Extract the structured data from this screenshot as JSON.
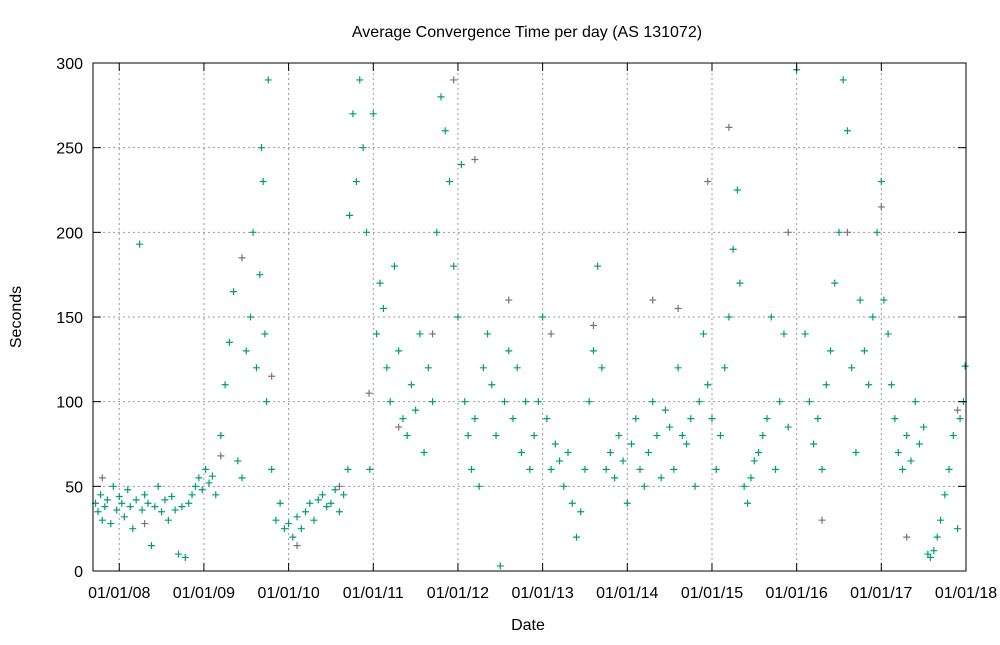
{
  "chart_data": {
    "type": "scatter",
    "title": "Average Convergence Time per day (AS 131072)",
    "xlabel": "Date",
    "ylabel": "Seconds",
    "xlim": [
      2007.69,
      2018.0
    ],
    "ylim": [
      0,
      300
    ],
    "grid": true,
    "xticks": [
      {
        "v": 2008,
        "label": "01/01/08"
      },
      {
        "v": 2009,
        "label": "01/01/09"
      },
      {
        "v": 2010,
        "label": "01/01/10"
      },
      {
        "v": 2011,
        "label": "01/01/11"
      },
      {
        "v": 2012,
        "label": "01/01/12"
      },
      {
        "v": 2013,
        "label": "01/01/13"
      },
      {
        "v": 2014,
        "label": "01/01/14"
      },
      {
        "v": 2015,
        "label": "01/01/15"
      },
      {
        "v": 2016,
        "label": "01/01/16"
      },
      {
        "v": 2017,
        "label": "01/01/17"
      },
      {
        "v": 2018,
        "label": "01/01/18"
      }
    ],
    "yticks": [
      0,
      50,
      100,
      150,
      200,
      250,
      300
    ],
    "series": [
      {
        "name": "primary",
        "color": "#009e73",
        "points": [
          [
            2007.72,
            40
          ],
          [
            2007.75,
            35
          ],
          [
            2007.78,
            45
          ],
          [
            2007.8,
            30
          ],
          [
            2007.83,
            38
          ],
          [
            2007.86,
            42
          ],
          [
            2007.9,
            28
          ],
          [
            2007.93,
            50
          ],
          [
            2007.97,
            36
          ],
          [
            2008.0,
            44
          ],
          [
            2008.03,
            40
          ],
          [
            2008.06,
            32
          ],
          [
            2008.1,
            48
          ],
          [
            2008.13,
            38
          ],
          [
            2008.16,
            25
          ],
          [
            2008.2,
            42
          ],
          [
            2008.24,
            193
          ],
          [
            2008.27,
            36
          ],
          [
            2008.3,
            45
          ],
          [
            2008.34,
            40
          ],
          [
            2008.38,
            15
          ],
          [
            2008.42,
            38
          ],
          [
            2008.46,
            50
          ],
          [
            2008.5,
            35
          ],
          [
            2008.54,
            42
          ],
          [
            2008.58,
            30
          ],
          [
            2008.62,
            44
          ],
          [
            2008.66,
            36
          ],
          [
            2008.7,
            10
          ],
          [
            2008.74,
            38
          ],
          [
            2008.78,
            8
          ],
          [
            2008.82,
            40
          ],
          [
            2008.86,
            45
          ],
          [
            2008.9,
            50
          ],
          [
            2008.94,
            55
          ],
          [
            2008.98,
            48
          ],
          [
            2009.02,
            60
          ],
          [
            2009.06,
            52
          ],
          [
            2009.1,
            56
          ],
          [
            2009.14,
            45
          ],
          [
            2009.2,
            80
          ],
          [
            2009.25,
            110
          ],
          [
            2009.3,
            135
          ],
          [
            2009.35,
            165
          ],
          [
            2009.4,
            65
          ],
          [
            2009.45,
            55
          ],
          [
            2009.5,
            130
          ],
          [
            2009.55,
            150
          ],
          [
            2009.58,
            200
          ],
          [
            2009.62,
            120
          ],
          [
            2009.66,
            175
          ],
          [
            2009.68,
            250
          ],
          [
            2009.7,
            230
          ],
          [
            2009.72,
            140
          ],
          [
            2009.74,
            100
          ],
          [
            2009.76,
            290
          ],
          [
            2009.8,
            60
          ],
          [
            2009.85,
            30
          ],
          [
            2009.9,
            40
          ],
          [
            2009.95,
            25
          ],
          [
            2010.0,
            28
          ],
          [
            2010.05,
            20
          ],
          [
            2010.1,
            32
          ],
          [
            2010.15,
            25
          ],
          [
            2010.2,
            35
          ],
          [
            2010.25,
            40
          ],
          [
            2010.3,
            30
          ],
          [
            2010.35,
            42
          ],
          [
            2010.4,
            45
          ],
          [
            2010.45,
            38
          ],
          [
            2010.5,
            40
          ],
          [
            2010.55,
            48
          ],
          [
            2010.6,
            35
          ],
          [
            2010.65,
            45
          ],
          [
            2010.7,
            60
          ],
          [
            2010.72,
            210
          ],
          [
            2010.76,
            270
          ],
          [
            2010.8,
            230
          ],
          [
            2010.84,
            290
          ],
          [
            2010.88,
            250
          ],
          [
            2010.92,
            200
          ],
          [
            2010.96,
            60
          ],
          [
            2011.0,
            270
          ],
          [
            2011.04,
            140
          ],
          [
            2011.08,
            170
          ],
          [
            2011.12,
            155
          ],
          [
            2011.16,
            120
          ],
          [
            2011.2,
            100
          ],
          [
            2011.25,
            180
          ],
          [
            2011.3,
            130
          ],
          [
            2011.35,
            90
          ],
          [
            2011.4,
            80
          ],
          [
            2011.45,
            110
          ],
          [
            2011.5,
            95
          ],
          [
            2011.55,
            140
          ],
          [
            2011.6,
            70
          ],
          [
            2011.65,
            120
          ],
          [
            2011.7,
            100
          ],
          [
            2011.75,
            200
          ],
          [
            2011.8,
            280
          ],
          [
            2011.85,
            260
          ],
          [
            2011.9,
            230
          ],
          [
            2011.95,
            180
          ],
          [
            2012.0,
            150
          ],
          [
            2012.04,
            240
          ],
          [
            2012.08,
            100
          ],
          [
            2012.12,
            80
          ],
          [
            2012.16,
            60
          ],
          [
            2012.2,
            90
          ],
          [
            2012.25,
            50
          ],
          [
            2012.3,
            120
          ],
          [
            2012.35,
            140
          ],
          [
            2012.4,
            110
          ],
          [
            2012.45,
            80
          ],
          [
            2012.5,
            3
          ],
          [
            2012.55,
            100
          ],
          [
            2012.6,
            130
          ],
          [
            2012.65,
            90
          ],
          [
            2012.7,
            120
          ],
          [
            2012.75,
            70
          ],
          [
            2012.8,
            100
          ],
          [
            2012.85,
            60
          ],
          [
            2012.9,
            80
          ],
          [
            2012.95,
            100
          ],
          [
            2013.0,
            150
          ],
          [
            2013.05,
            90
          ],
          [
            2013.1,
            60
          ],
          [
            2013.15,
            75
          ],
          [
            2013.2,
            65
          ],
          [
            2013.25,
            50
          ],
          [
            2013.3,
            70
          ],
          [
            2013.35,
            40
          ],
          [
            2013.4,
            20
          ],
          [
            2013.45,
            35
          ],
          [
            2013.5,
            60
          ],
          [
            2013.55,
            100
          ],
          [
            2013.6,
            130
          ],
          [
            2013.65,
            180
          ],
          [
            2013.7,
            120
          ],
          [
            2013.75,
            60
          ],
          [
            2013.8,
            70
          ],
          [
            2013.85,
            55
          ],
          [
            2013.9,
            80
          ],
          [
            2013.95,
            65
          ],
          [
            2014.0,
            40
          ],
          [
            2014.05,
            75
          ],
          [
            2014.1,
            90
          ],
          [
            2014.15,
            60
          ],
          [
            2014.2,
            50
          ],
          [
            2014.25,
            70
          ],
          [
            2014.3,
            100
          ],
          [
            2014.35,
            80
          ],
          [
            2014.4,
            55
          ],
          [
            2014.45,
            95
          ],
          [
            2014.5,
            85
          ],
          [
            2014.55,
            60
          ],
          [
            2014.6,
            120
          ],
          [
            2014.65,
            80
          ],
          [
            2014.7,
            75
          ],
          [
            2014.75,
            90
          ],
          [
            2014.8,
            50
          ],
          [
            2014.85,
            100
          ],
          [
            2014.9,
            140
          ],
          [
            2014.95,
            110
          ],
          [
            2015.0,
            90
          ],
          [
            2015.05,
            60
          ],
          [
            2015.1,
            80
          ],
          [
            2015.15,
            120
          ],
          [
            2015.2,
            150
          ],
          [
            2015.25,
            190
          ],
          [
            2015.3,
            225
          ],
          [
            2015.33,
            170
          ],
          [
            2015.38,
            50
          ],
          [
            2015.42,
            40
          ],
          [
            2015.46,
            55
          ],
          [
            2015.5,
            65
          ],
          [
            2015.55,
            70
          ],
          [
            2015.6,
            80
          ],
          [
            2015.65,
            90
          ],
          [
            2015.7,
            150
          ],
          [
            2015.75,
            60
          ],
          [
            2015.8,
            100
          ],
          [
            2015.85,
            140
          ],
          [
            2015.9,
            85
          ],
          [
            2016.0,
            296
          ],
          [
            2016.1,
            140
          ],
          [
            2016.15,
            100
          ],
          [
            2016.2,
            75
          ],
          [
            2016.25,
            90
          ],
          [
            2016.3,
            60
          ],
          [
            2016.35,
            110
          ],
          [
            2016.4,
            130
          ],
          [
            2016.45,
            170
          ],
          [
            2016.5,
            200
          ],
          [
            2016.55,
            290
          ],
          [
            2016.6,
            260
          ],
          [
            2016.65,
            120
          ],
          [
            2016.7,
            70
          ],
          [
            2016.75,
            160
          ],
          [
            2016.8,
            130
          ],
          [
            2016.85,
            110
          ],
          [
            2016.9,
            150
          ],
          [
            2016.95,
            200
          ],
          [
            2017.0,
            230
          ],
          [
            2017.03,
            160
          ],
          [
            2017.08,
            140
          ],
          [
            2017.12,
            110
          ],
          [
            2017.16,
            90
          ],
          [
            2017.2,
            70
          ],
          [
            2017.25,
            60
          ],
          [
            2017.3,
            80
          ],
          [
            2017.35,
            65
          ],
          [
            2017.4,
            100
          ],
          [
            2017.45,
            75
          ],
          [
            2017.5,
            85
          ],
          [
            2017.55,
            10
          ],
          [
            2017.58,
            8
          ],
          [
            2017.62,
            12
          ],
          [
            2017.66,
            20
          ],
          [
            2017.7,
            30
          ],
          [
            2017.75,
            45
          ],
          [
            2017.8,
            60
          ],
          [
            2017.85,
            80
          ],
          [
            2017.9,
            25
          ],
          [
            2017.93,
            90
          ],
          [
            2017.97,
            100
          ],
          [
            2017.99,
            121
          ]
        ]
      },
      {
        "name": "secondary",
        "color": "#7f6f7f",
        "points": [
          [
            2007.8,
            55
          ],
          [
            2008.3,
            28
          ],
          [
            2009.2,
            68
          ],
          [
            2009.45,
            185
          ],
          [
            2009.8,
            115
          ],
          [
            2010.1,
            15
          ],
          [
            2010.6,
            50
          ],
          [
            2010.95,
            105
          ],
          [
            2011.3,
            85
          ],
          [
            2011.7,
            140
          ],
          [
            2011.95,
            290
          ],
          [
            2012.2,
            243
          ],
          [
            2012.6,
            160
          ],
          [
            2013.1,
            140
          ],
          [
            2013.6,
            145
          ],
          [
            2014.3,
            160
          ],
          [
            2014.6,
            155
          ],
          [
            2014.95,
            230
          ],
          [
            2015.2,
            262
          ],
          [
            2015.9,
            200
          ],
          [
            2016.3,
            30
          ],
          [
            2016.6,
            200
          ],
          [
            2017.0,
            215
          ],
          [
            2017.3,
            20
          ],
          [
            2017.9,
            95
          ]
        ]
      }
    ]
  }
}
